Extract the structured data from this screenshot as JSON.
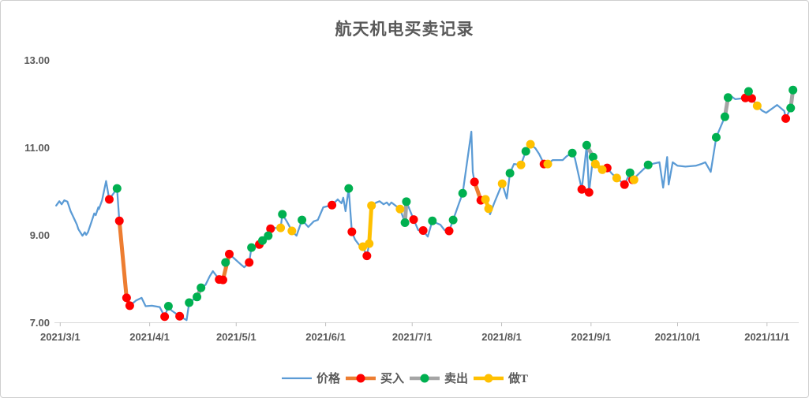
{
  "title": "航天机电买卖记录",
  "chart_data": {
    "type": "line",
    "title": "航天机电买卖记录",
    "x_axis": {
      "unit": "days since 2021/3/1",
      "range_days": [
        -2,
        256
      ],
      "tick_days": [
        0,
        31,
        61,
        92,
        122,
        153,
        184,
        214,
        245
      ],
      "tick_labels": [
        "2021/3/1",
        "2021/4/1",
        "2021/5/1",
        "2021/6/1",
        "2021/7/1",
        "2021/8/1",
        "2021/9/1",
        "2021/10/1",
        "2021/11/1"
      ]
    },
    "y_axis": {
      "range": [
        7,
        13
      ],
      "tick_values": [
        13,
        11,
        9,
        7
      ],
      "tick_labels": [
        "13.00",
        "11.00",
        "9.00",
        "7.00"
      ],
      "gridlines": false
    },
    "legend_position": "bottom",
    "price_series": {
      "name": "价格",
      "color": "#5B9BD5",
      "points": [
        [
          -1.4,
          9.67
        ],
        [
          -0.3,
          9.77
        ],
        [
          0.5,
          9.7
        ],
        [
          1.4,
          9.79
        ],
        [
          2.5,
          9.76
        ],
        [
          3.6,
          9.54
        ],
        [
          4.9,
          9.36
        ],
        [
          5.8,
          9.23
        ],
        [
          6.3,
          9.13
        ],
        [
          7.7,
          8.98
        ],
        [
          8.5,
          9.06
        ],
        [
          9.0,
          9.0
        ],
        [
          9.6,
          9.06
        ],
        [
          10.7,
          9.27
        ],
        [
          11.8,
          9.49
        ],
        [
          12.3,
          9.45
        ],
        [
          13.2,
          9.63
        ],
        [
          13.4,
          9.59
        ],
        [
          14.5,
          9.79
        ],
        [
          15.9,
          10.23
        ],
        [
          16.4,
          10.03
        ],
        [
          17.0,
          9.81
        ],
        [
          19.7,
          10.06
        ],
        [
          20.5,
          9.32
        ],
        [
          23.0,
          7.56
        ],
        [
          24.1,
          7.38
        ],
        [
          26.3,
          7.5
        ],
        [
          28.2,
          7.56
        ],
        [
          29.6,
          7.37
        ],
        [
          31.8,
          7.38
        ],
        [
          34.5,
          7.35
        ],
        [
          36.2,
          7.13
        ],
        [
          37.5,
          7.37
        ],
        [
          38.6,
          7.27
        ],
        [
          41.4,
          7.14
        ],
        [
          43.8,
          7.05
        ],
        [
          44.7,
          7.45
        ],
        [
          47.4,
          7.58
        ],
        [
          48.8,
          7.79
        ],
        [
          50.4,
          7.86
        ],
        [
          51.8,
          8.05
        ],
        [
          52.9,
          8.17
        ],
        [
          55.1,
          7.98
        ],
        [
          56.4,
          7.97
        ],
        [
          57.3,
          8.37
        ],
        [
          58.6,
          8.56
        ],
        [
          60.5,
          8.45
        ],
        [
          62.5,
          8.33
        ],
        [
          63.8,
          8.26
        ],
        [
          65.5,
          8.37
        ],
        [
          66.3,
          8.71
        ],
        [
          67.7,
          8.74
        ],
        [
          69.0,
          8.78
        ],
        [
          70.1,
          8.87
        ],
        [
          72.1,
          8.98
        ],
        [
          72.9,
          9.14
        ],
        [
          74.8,
          9.16
        ],
        [
          76.4,
          9.16
        ],
        [
          77.0,
          9.47
        ],
        [
          78.6,
          9.3
        ],
        [
          80.3,
          9.09
        ],
        [
          81.9,
          8.98
        ],
        [
          83.8,
          9.34
        ],
        [
          86.0,
          9.18
        ],
        [
          87.9,
          9.31
        ],
        [
          89.3,
          9.34
        ],
        [
          91.2,
          9.63
        ],
        [
          94.2,
          9.68
        ],
        [
          96.2,
          9.81
        ],
        [
          97.5,
          9.72
        ],
        [
          98.1,
          9.85
        ],
        [
          98.9,
          9.54
        ],
        [
          100.0,
          10.06
        ],
        [
          101.1,
          9.07
        ],
        [
          102.2,
          8.89
        ],
        [
          103.6,
          8.77
        ],
        [
          104.9,
          8.73
        ],
        [
          106.3,
          8.52
        ],
        [
          107.1,
          8.8
        ],
        [
          107.9,
          9.67
        ],
        [
          109.6,
          9.74
        ],
        [
          110.7,
          9.77
        ],
        [
          112.1,
          9.7
        ],
        [
          113.2,
          9.74
        ],
        [
          114.0,
          9.68
        ],
        [
          114.8,
          9.74
        ],
        [
          117.8,
          9.59
        ],
        [
          119.5,
          9.28
        ],
        [
          120.0,
          9.76
        ],
        [
          122.5,
          9.35
        ],
        [
          124.1,
          9.11
        ],
        [
          125.8,
          9.09
        ],
        [
          127.4,
          8.96
        ],
        [
          129.0,
          9.32
        ],
        [
          130.4,
          9.27
        ],
        [
          131.8,
          9.23
        ],
        [
          133.2,
          9.11
        ],
        [
          134.8,
          9.09
        ],
        [
          136.2,
          9.34
        ],
        [
          138.1,
          9.7
        ],
        [
          139.5,
          9.95
        ],
        [
          142.5,
          11.36
        ],
        [
          143.0,
          10.44
        ],
        [
          143.6,
          10.21
        ],
        [
          145.8,
          9.79
        ],
        [
          147.4,
          9.81
        ],
        [
          148.5,
          9.6
        ],
        [
          149.0,
          9.47
        ],
        [
          150.4,
          9.72
        ],
        [
          153.2,
          10.17
        ],
        [
          154.8,
          9.83
        ],
        [
          155.9,
          10.41
        ],
        [
          157.3,
          10.62
        ],
        [
          159.7,
          10.6
        ],
        [
          161.4,
          10.91
        ],
        [
          163.0,
          11.07
        ],
        [
          164.7,
          10.98
        ],
        [
          166.0,
          10.85
        ],
        [
          167.7,
          10.62
        ],
        [
          169.0,
          10.62
        ],
        [
          170.7,
          10.71
        ],
        [
          174.2,
          10.71
        ],
        [
          175.6,
          10.8
        ],
        [
          177.5,
          10.87
        ],
        [
          178.4,
          10.75
        ],
        [
          180.8,
          10.04
        ],
        [
          182.5,
          11.05
        ],
        [
          183.3,
          9.97
        ],
        [
          184.7,
          10.78
        ],
        [
          185.5,
          10.62
        ],
        [
          187.9,
          10.49
        ],
        [
          189.6,
          10.53
        ],
        [
          191.2,
          10.4
        ],
        [
          192.9,
          10.3
        ],
        [
          195.6,
          10.15
        ],
        [
          197.5,
          10.42
        ],
        [
          198.4,
          10.26
        ],
        [
          201.1,
          10.43
        ],
        [
          203.8,
          10.6
        ],
        [
          207.7,
          10.66
        ],
        [
          209.0,
          10.08
        ],
        [
          210.4,
          10.78
        ],
        [
          210.9,
          10.15
        ],
        [
          212.3,
          10.66
        ],
        [
          214.0,
          10.58
        ],
        [
          216.7,
          10.56
        ],
        [
          220.3,
          10.58
        ],
        [
          222.2,
          10.62
        ],
        [
          223.6,
          10.66
        ],
        [
          225.5,
          10.44
        ],
        [
          227.4,
          11.23
        ],
        [
          230.4,
          11.7
        ],
        [
          231.5,
          12.14
        ],
        [
          232.6,
          12.17
        ],
        [
          234.0,
          12.1
        ],
        [
          237.5,
          12.13
        ],
        [
          238.6,
          12.28
        ],
        [
          239.7,
          12.12
        ],
        [
          241.6,
          11.95
        ],
        [
          243.3,
          11.84
        ],
        [
          244.7,
          11.79
        ],
        [
          248.5,
          11.97
        ],
        [
          251.0,
          11.83
        ],
        [
          251.5,
          11.66
        ],
        [
          253.2,
          11.9
        ],
        [
          254.0,
          12.31
        ]
      ]
    },
    "trade_series": [
      {
        "key": "buy",
        "name": "买入",
        "line_color": "#ED7D31",
        "marker_color": "#FF0000",
        "points": [
          [
            17.0,
            9.81
          ],
          [
            20.5,
            9.32
          ],
          [
            23.0,
            7.56
          ],
          [
            24.1,
            7.38
          ],
          [
            36.2,
            7.13
          ],
          [
            41.4,
            7.14
          ],
          [
            55.1,
            7.98
          ],
          [
            56.4,
            7.97
          ],
          [
            58.6,
            8.56
          ],
          [
            65.5,
            8.37
          ],
          [
            69.0,
            8.78
          ],
          [
            72.9,
            9.14
          ],
          [
            94.2,
            9.68
          ],
          [
            101.1,
            9.07
          ],
          [
            106.3,
            8.52
          ],
          [
            122.5,
            9.35
          ],
          [
            125.8,
            9.1
          ],
          [
            134.8,
            9.09
          ],
          [
            143.6,
            10.21
          ],
          [
            145.8,
            9.79
          ],
          [
            167.7,
            10.62
          ],
          [
            180.8,
            10.04
          ],
          [
            183.3,
            9.97
          ],
          [
            189.6,
            10.53
          ],
          [
            195.6,
            10.15
          ],
          [
            198.4,
            10.26
          ],
          [
            237.5,
            12.13
          ],
          [
            239.7,
            12.12
          ],
          [
            251.5,
            11.66
          ]
        ]
      },
      {
        "key": "sell",
        "name": "卖出",
        "line_color": "#A5A5A5",
        "marker_color": "#00B050",
        "points": [
          [
            19.7,
            10.06
          ],
          [
            37.5,
            7.37
          ],
          [
            44.7,
            7.45
          ],
          [
            47.4,
            7.58
          ],
          [
            48.8,
            7.79
          ],
          [
            57.3,
            8.37
          ],
          [
            66.3,
            8.71
          ],
          [
            70.1,
            8.87
          ],
          [
            72.1,
            8.98
          ],
          [
            77.0,
            9.47
          ],
          [
            83.8,
            9.34
          ],
          [
            100.0,
            10.06
          ],
          [
            119.5,
            9.28
          ],
          [
            120.0,
            9.76
          ],
          [
            129.0,
            9.32
          ],
          [
            136.2,
            9.34
          ],
          [
            139.5,
            9.95
          ],
          [
            155.9,
            10.41
          ],
          [
            161.4,
            10.91
          ],
          [
            177.5,
            10.87
          ],
          [
            182.5,
            11.05
          ],
          [
            184.7,
            10.78
          ],
          [
            197.5,
            10.42
          ],
          [
            203.8,
            10.6
          ],
          [
            227.4,
            11.23
          ],
          [
            230.4,
            11.7
          ],
          [
            231.5,
            12.14
          ],
          [
            238.6,
            12.28
          ],
          [
            253.2,
            11.9
          ],
          [
            254.0,
            12.31
          ]
        ]
      },
      {
        "key": "t",
        "name": "做T",
        "line_color": "#FFC000",
        "marker_color": "#FFC000",
        "points": [
          [
            76.4,
            9.16
          ],
          [
            80.3,
            9.09
          ],
          [
            104.9,
            8.73
          ],
          [
            107.1,
            8.8
          ],
          [
            107.9,
            9.67
          ],
          [
            117.8,
            9.59
          ],
          [
            147.4,
            9.81
          ],
          [
            148.5,
            9.6
          ],
          [
            153.2,
            10.17
          ],
          [
            159.7,
            10.6
          ],
          [
            163.0,
            11.07
          ],
          [
            169.0,
            10.62
          ],
          [
            185.5,
            10.62
          ],
          [
            187.9,
            10.49
          ],
          [
            192.9,
            10.3
          ],
          [
            198.9,
            10.26
          ],
          [
            241.6,
            11.95
          ]
        ]
      }
    ],
    "legend": [
      {
        "key": "price",
        "label": "价格"
      },
      {
        "key": "buy",
        "label": "买入"
      },
      {
        "key": "sell",
        "label": "卖出"
      },
      {
        "key": "t",
        "label": "做T"
      }
    ],
    "colors": {
      "price_line": "#5B9BD5",
      "buy_line": "#ED7D31",
      "buy_marker": "#FF0000",
      "sell_line": "#A5A5A5",
      "sell_marker": "#00B050",
      "t_line": "#FFC000",
      "t_marker": "#FFC000",
      "axis_text": "#595959",
      "axis_line": "#D9D9D9",
      "tick_mark": "#BFBFBF"
    }
  }
}
